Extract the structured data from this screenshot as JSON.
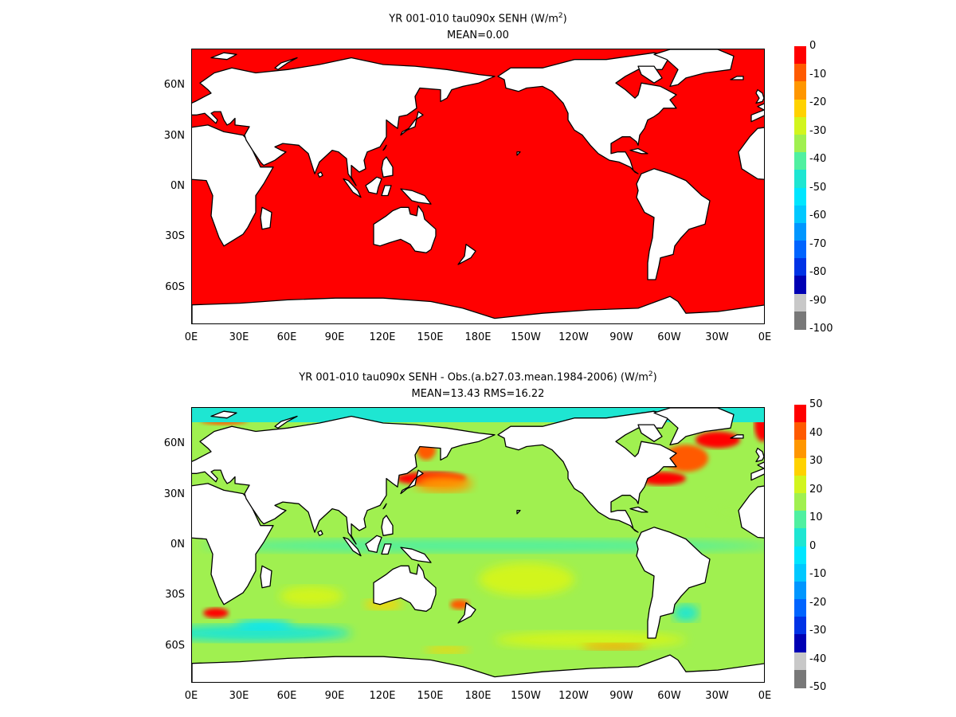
{
  "panels": [
    {
      "id": "top",
      "title_main": "YR 001-010 tau090x  SENH (W/m",
      "title_sup": "2",
      "title_close": ")",
      "subtitle": "MEAN=0.00",
      "colorbar": {
        "labels": [
          "0",
          "-10",
          "-20",
          "-30",
          "-40",
          "-50",
          "-60",
          "-70",
          "-80",
          "-90",
          "-100"
        ],
        "colors": [
          "#ff0000",
          "#ff5a00",
          "#ff9600",
          "#ffd200",
          "#d2f51e",
          "#a0f050",
          "#50f0a0",
          "#1ee6d2",
          "#00e6ff",
          "#00c8ff",
          "#0096ff",
          "#0064ff",
          "#0032e6",
          "#0000b4",
          "#c8c8c8",
          "#787878"
        ]
      },
      "field": "uniform-red"
    },
    {
      "id": "bottom",
      "title_main": "YR 001-010 tau090x SENH - Obs.(a.b27.03.mean.1984-2006) (W/m",
      "title_sup": "2",
      "title_close": ")",
      "subtitle": "MEAN=13.43 RMS=16.22",
      "colorbar": {
        "labels": [
          "50",
          "40",
          "30",
          "20",
          "10",
          "0",
          "-10",
          "-20",
          "-30",
          "-40",
          "-50"
        ],
        "colors": [
          "#ff0000",
          "#ff5a00",
          "#ff9600",
          "#ffd200",
          "#d2f51e",
          "#a0f050",
          "#50f0a0",
          "#1ee6d2",
          "#00e6ff",
          "#00c8ff",
          "#0096ff",
          "#0064ff",
          "#0032e6",
          "#0000b4",
          "#c8c8c8",
          "#787878"
        ]
      },
      "field": "anomaly"
    }
  ],
  "lat_labels": [
    "60N",
    "30N",
    "0N",
    "30S",
    "60S"
  ],
  "lon_labels": [
    "0E",
    "30E",
    "60E",
    "90E",
    "120E",
    "150E",
    "180E",
    "150W",
    "120W",
    "90W",
    "60W",
    "30W",
    "0E"
  ],
  "colors": {
    "ocean_top": "#ff0000",
    "land": "#ffffff",
    "coast": "#000000",
    "ocean_base": "#a0f050",
    "anomaly_high": "#ff0000",
    "anomaly_warm": "#ffd200",
    "anomaly_cool": "#1ee6d2"
  }
}
